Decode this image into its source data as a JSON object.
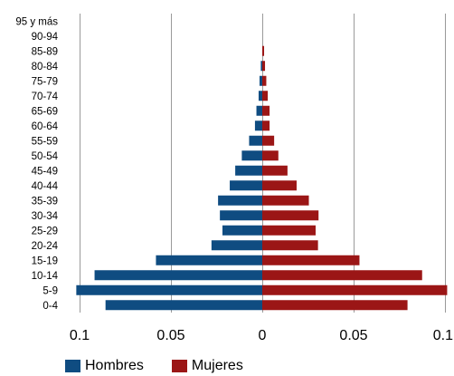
{
  "chart_data": {
    "type": "bar",
    "orientation": "horizontal",
    "categories": [
      "95 y más",
      "90-94",
      "85-89",
      "80-84",
      "75-79",
      "70-74",
      "65-69",
      "60-64",
      "55-59",
      "50-54",
      "45-49",
      "40-44",
      "35-39",
      "30-34",
      "25-29",
      "20-24",
      "15-19",
      "10-14",
      "5-9",
      "0-4"
    ],
    "series": [
      {
        "name": "Hombres",
        "color": "#0f4c81",
        "values": [
          0,
          0,
          0,
          0.0008,
          0.0015,
          0.002,
          0.0032,
          0.004,
          0.0072,
          0.0112,
          0.0148,
          0.0178,
          0.0242,
          0.0232,
          0.0218,
          0.0278,
          0.0582,
          0.0918,
          0.1018,
          0.0858
        ]
      },
      {
        "name": "Mujeres",
        "color": "#9b1616",
        "values": [
          0,
          0,
          0.001,
          0.0015,
          0.0022,
          0.003,
          0.004,
          0.004,
          0.0065,
          0.0088,
          0.0138,
          0.0188,
          0.0255,
          0.0308,
          0.0292,
          0.0305,
          0.0532,
          0.0875,
          0.1012,
          0.0795
        ]
      }
    ],
    "xlim": [
      -0.1,
      0.1
    ],
    "x_tick_values": [
      -0.1,
      -0.05,
      0,
      0.05,
      0.1
    ],
    "x_tick_labels": [
      "0.1",
      "0.05",
      "0",
      "0.05",
      "0.1"
    ],
    "grid": true,
    "legend_position": "bottom-left",
    "title": "",
    "xlabel": "",
    "ylabel": ""
  }
}
